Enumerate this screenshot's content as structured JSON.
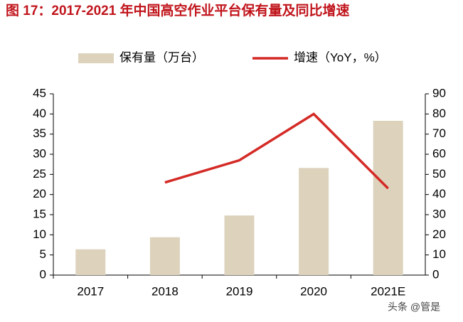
{
  "chart_data": {
    "type": "bar",
    "title": "图 17：2017-2021 年中国高空作业平台保有量及同比增速",
    "categories": [
      "2017",
      "2018",
      "2019",
      "2020",
      "2021E"
    ],
    "series": [
      {
        "name": "保有量（万台）",
        "type": "bar",
        "color": "#ddd3bd",
        "axis": "y",
        "values": [
          6.4,
          9.4,
          14.8,
          26.6,
          38.3
        ]
      },
      {
        "name": "增速（YoY，%）",
        "type": "line",
        "color": "#d42a26",
        "axis": "y2",
        "values": [
          null,
          46,
          57,
          80,
          43
        ]
      }
    ],
    "ylim": [
      0,
      45
    ],
    "yticks": [
      0,
      5,
      10,
      15,
      20,
      25,
      30,
      35,
      40,
      45
    ],
    "y2lim": [
      0,
      90
    ],
    "y2ticks": [
      0,
      10,
      20,
      30,
      40,
      50,
      60,
      70,
      80,
      90
    ],
    "grid": false,
    "legend": "top",
    "watermark": "头条 @管是"
  }
}
